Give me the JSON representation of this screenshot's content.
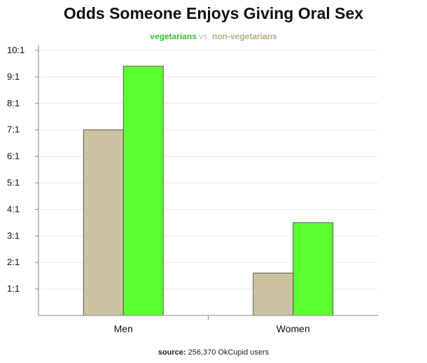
{
  "chart_data": {
    "type": "bar",
    "title": "Odds Someone Enjoys Giving Oral Sex",
    "subtitle": {
      "vegetarians": "vegetarians",
      "vs": "vs.",
      "non_vegetarians": "non-vegetarians"
    },
    "categories": [
      "Men",
      "Women"
    ],
    "series": [
      {
        "name": "non-vegetarians",
        "color": "#cbc39f",
        "values": [
          7.0,
          1.6
        ]
      },
      {
        "name": "vegetarians",
        "color": "#5cff30",
        "values": [
          9.4,
          3.5
        ]
      }
    ],
    "y_ticks": [
      "1:1",
      "2:1",
      "3:1",
      "4:1",
      "5:1",
      "6:1",
      "7:1",
      "8:1",
      "9:1",
      "10:1"
    ],
    "ylim": [
      0,
      10
    ],
    "grid": true,
    "legend": "subtitle",
    "source_label": "source:",
    "source_text": "256,370 OkCupid users"
  }
}
